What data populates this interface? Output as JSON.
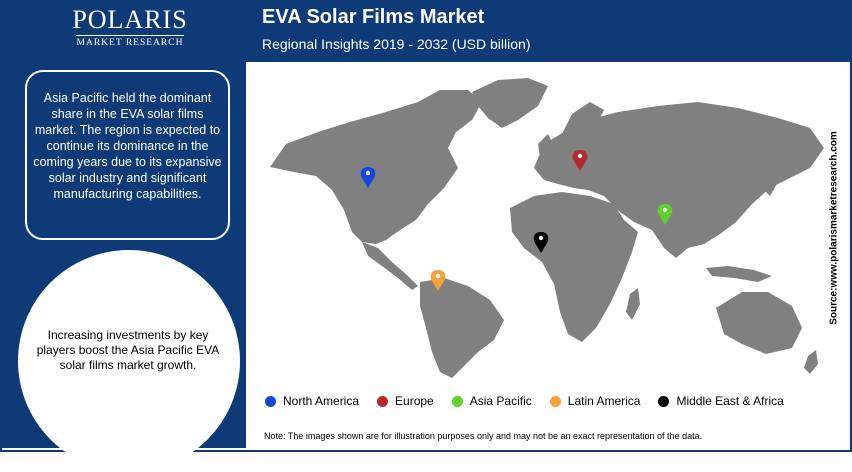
{
  "brand": {
    "name": "POLARIS",
    "tagline": "MARKET RESEARCH"
  },
  "header": {
    "title": "EVA Solar Films Market",
    "subtitle": "Regional Insights 2019 - 2032 (USD billion)"
  },
  "insight_box": "Asia Pacific held the dominant share in the EVA solar films market. The region is expected to continue its dominance in the coming years due to its expansive solar industry and significant manufacturing capabilities.",
  "circle_text": "Increasing investments by key players boost the Asia Pacific EVA solar films market growth.",
  "source": "Source:www.polarismarketresearch.com",
  "legend": [
    {
      "label": "North America",
      "color": "#1446e0"
    },
    {
      "label": "Europe",
      "color": "#b5282e"
    },
    {
      "label": "Asia Pacific",
      "color": "#5fd128"
    },
    {
      "label": "Latin America",
      "color": "#f5a13c"
    },
    {
      "label": "Middle East & Africa",
      "color": "#000000"
    }
  ],
  "note": "Note: The images shown are for illustration purposes only and may not be an exact representation of the data.",
  "map_land_color": "#808080"
}
